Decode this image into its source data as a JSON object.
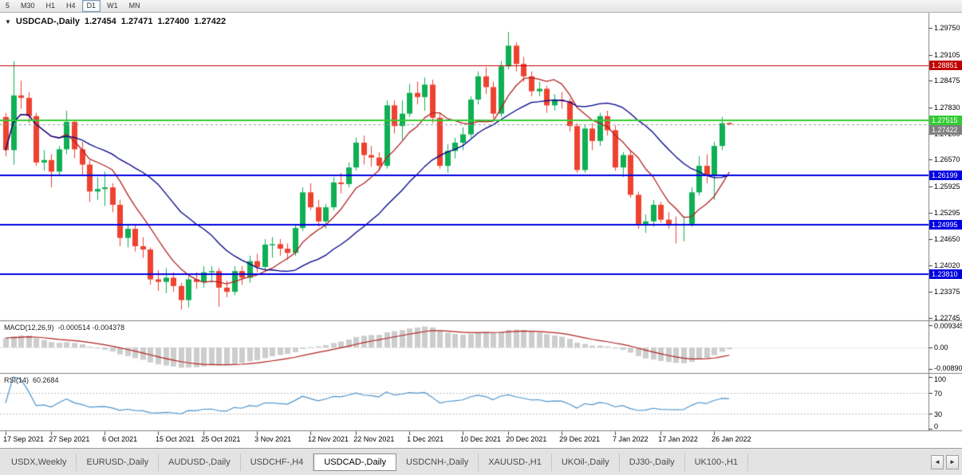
{
  "toolbar": {
    "timeframes": [
      "5",
      "M30",
      "H1",
      "H4",
      "D1",
      "W1",
      "MN"
    ],
    "active": "D1"
  },
  "icons": {
    "collapse": "▼",
    "tab_scroll_left": "◄",
    "tab_scroll_right": "►"
  },
  "chart": {
    "title": "USDCAD-,Daily",
    "open": "1.27454",
    "high": "1.27471",
    "low": "1.27400",
    "close": "1.27422"
  },
  "indicators": {
    "macd": {
      "label": "MACD(12,26,9)",
      "values": "-0.000514 -0.004378"
    },
    "rsi": {
      "label": "RSI(14)",
      "value": "60.2684"
    }
  },
  "tabs": {
    "items": [
      "USDX,Weekly",
      "EURUSD-,Daily",
      "AUDUSD-,Daily",
      "USDCHF-,H4",
      "USDCAD-,Daily",
      "USDCNH-,Daily",
      "XAUUSD-,H1",
      "UKOil-,Daily",
      "DJ30-,Daily",
      "UK100-,H1"
    ],
    "active_index": 4
  },
  "chart_data": {
    "type": "candlestick",
    "symbol": "USDCAD",
    "period": "Daily",
    "ylim": [
      1.2269,
      1.30115
    ],
    "candles": [
      [
        1.276,
        1.277,
        1.2665,
        1.268
      ],
      [
        1.268,
        1.2895,
        1.2645,
        1.2812
      ],
      [
        1.2812,
        1.2848,
        1.278,
        1.2806
      ],
      [
        1.2806,
        1.282,
        1.2745,
        1.2762
      ],
      [
        1.2762,
        1.277,
        1.2642,
        1.265
      ],
      [
        1.265,
        1.268,
        1.263,
        1.2656
      ],
      [
        1.2656,
        1.267,
        1.259,
        1.2628
      ],
      [
        1.2628,
        1.269,
        1.262,
        1.2682
      ],
      [
        1.2682,
        1.2775,
        1.267,
        1.2748
      ],
      [
        1.2748,
        1.2752,
        1.266,
        1.2682
      ],
      [
        1.2682,
        1.27,
        1.262,
        1.2645
      ],
      [
        1.2645,
        1.2655,
        1.2555,
        1.258
      ],
      [
        1.258,
        1.2615,
        1.256,
        1.2586
      ],
      [
        1.2586,
        1.2628,
        1.2545,
        1.259
      ],
      [
        1.259,
        1.26,
        1.253,
        1.2548
      ],
      [
        1.2548,
        1.256,
        1.2448,
        1.2468
      ],
      [
        1.2468,
        1.25,
        1.2445,
        1.249
      ],
      [
        1.249,
        1.2502,
        1.2435,
        1.2448
      ],
      [
        1.2448,
        1.247,
        1.242,
        1.244
      ],
      [
        1.244,
        1.2445,
        1.2355,
        1.2368
      ],
      [
        1.2368,
        1.239,
        1.234,
        1.2362
      ],
      [
        1.2362,
        1.2395,
        1.2335,
        1.2372
      ],
      [
        1.2372,
        1.2385,
        1.2338,
        1.2352
      ],
      [
        1.2352,
        1.236,
        1.2295,
        1.2318
      ],
      [
        1.2318,
        1.2375,
        1.23,
        1.2368
      ],
      [
        1.2368,
        1.2385,
        1.2345,
        1.2362
      ],
      [
        1.2362,
        1.24,
        1.2348,
        1.2385
      ],
      [
        1.2385,
        1.24,
        1.236,
        1.2388
      ],
      [
        1.2388,
        1.2395,
        1.2302,
        1.2348
      ],
      [
        1.2348,
        1.2365,
        1.2325,
        1.2338
      ],
      [
        1.2338,
        1.24,
        1.233,
        1.2388
      ],
      [
        1.2388,
        1.24,
        1.2355,
        1.2372
      ],
      [
        1.2372,
        1.2425,
        1.236,
        1.2412
      ],
      [
        1.2412,
        1.243,
        1.2385,
        1.2398
      ],
      [
        1.2398,
        1.2465,
        1.239,
        1.2452
      ],
      [
        1.2452,
        1.247,
        1.242,
        1.2453
      ],
      [
        1.2453,
        1.2465,
        1.2425,
        1.2442
      ],
      [
        1.2442,
        1.2455,
        1.2415,
        1.2432
      ],
      [
        1.2432,
        1.25,
        1.2425,
        1.2492
      ],
      [
        1.2492,
        1.259,
        1.2485,
        1.2578
      ],
      [
        1.2578,
        1.26,
        1.2535,
        1.2542
      ],
      [
        1.2542,
        1.256,
        1.2495,
        1.2508
      ],
      [
        1.2508,
        1.255,
        1.249,
        1.2542
      ],
      [
        1.2542,
        1.2615,
        1.2535,
        1.2602
      ],
      [
        1.2602,
        1.2625,
        1.2575,
        1.2598
      ],
      [
        1.2598,
        1.265,
        1.259,
        1.2638
      ],
      [
        1.2638,
        1.271,
        1.263,
        1.2698
      ],
      [
        1.2698,
        1.2715,
        1.2645,
        1.2668
      ],
      [
        1.2668,
        1.269,
        1.264,
        1.2662
      ],
      [
        1.2662,
        1.2675,
        1.263,
        1.2642
      ],
      [
        1.2642,
        1.28,
        1.2635,
        1.2788
      ],
      [
        1.2788,
        1.28,
        1.272,
        1.2738
      ],
      [
        1.2738,
        1.28,
        1.2705,
        1.2768
      ],
      [
        1.2768,
        1.284,
        1.276,
        1.2818
      ],
      [
        1.2818,
        1.2845,
        1.279,
        1.2808
      ],
      [
        1.2808,
        1.2855,
        1.2775,
        1.2838
      ],
      [
        1.2838,
        1.285,
        1.2745,
        1.2758
      ],
      [
        1.2758,
        1.277,
        1.2635,
        1.2642
      ],
      [
        1.2642,
        1.2695,
        1.2625,
        1.2678
      ],
      [
        1.2678,
        1.271,
        1.266,
        1.2698
      ],
      [
        1.2698,
        1.2735,
        1.268,
        1.2718
      ],
      [
        1.2718,
        1.281,
        1.271,
        1.2802
      ],
      [
        1.2802,
        1.287,
        1.279,
        1.2858
      ],
      [
        1.2858,
        1.288,
        1.2815,
        1.2832
      ],
      [
        1.2832,
        1.2845,
        1.2755,
        1.2768
      ],
      [
        1.2768,
        1.2895,
        1.276,
        1.2882
      ],
      [
        1.2882,
        1.2965,
        1.2875,
        1.2932
      ],
      [
        1.2932,
        1.294,
        1.287,
        1.2888
      ],
      [
        1.2888,
        1.2905,
        1.2845,
        1.2858
      ],
      [
        1.2858,
        1.287,
        1.281,
        1.2822
      ],
      [
        1.2822,
        1.2845,
        1.281,
        1.2828
      ],
      [
        1.2828,
        1.2835,
        1.277,
        1.2788
      ],
      [
        1.2788,
        1.2815,
        1.2775,
        1.2802
      ],
      [
        1.2802,
        1.282,
        1.278,
        1.2798
      ],
      [
        1.2798,
        1.2805,
        1.2725,
        1.2738
      ],
      [
        1.2738,
        1.2745,
        1.2625,
        1.2632
      ],
      [
        1.2632,
        1.2742,
        1.2625,
        1.2732
      ],
      [
        1.2732,
        1.2745,
        1.268,
        1.2702
      ],
      [
        1.2702,
        1.277,
        1.269,
        1.2762
      ],
      [
        1.2762,
        1.2775,
        1.2715,
        1.2728
      ],
      [
        1.2728,
        1.274,
        1.263,
        1.2638
      ],
      [
        1.2638,
        1.2675,
        1.2615,
        1.2668
      ],
      [
        1.2668,
        1.268,
        1.2565,
        1.2572
      ],
      [
        1.2572,
        1.258,
        1.249,
        1.2502
      ],
      [
        1.2502,
        1.2525,
        1.248,
        1.2508
      ],
      [
        1.2508,
        1.256,
        1.2495,
        1.2548
      ],
      [
        1.2548,
        1.2555,
        1.2505,
        1.2512
      ],
      [
        1.2512,
        1.253,
        1.249,
        1.2502
      ],
      [
        1.2502,
        1.252,
        1.2455,
        1.2498
      ],
      [
        1.2498,
        1.252,
        1.246,
        1.2502
      ],
      [
        1.2502,
        1.259,
        1.2495,
        1.2578
      ],
      [
        1.2578,
        1.2665,
        1.257,
        1.2642
      ],
      [
        1.2642,
        1.267,
        1.26,
        1.2618
      ],
      [
        1.2618,
        1.27,
        1.256,
        1.269
      ],
      [
        1.269,
        1.276,
        1.268,
        1.2745
      ],
      [
        1.27454,
        1.27471,
        1.274,
        1.27422
      ]
    ],
    "date_labels": [
      {
        "text": "17 Sep 2021",
        "index": 0
      },
      {
        "text": "27 Sep 2021",
        "index": 6
      },
      {
        "text": "6 Oct 2021",
        "index": 13
      },
      {
        "text": "15 Oct 2021",
        "index": 20
      },
      {
        "text": "25 Oct 2021",
        "index": 26
      },
      {
        "text": "3 Nov 2021",
        "index": 33
      },
      {
        "text": "12 Nov 2021",
        "index": 40
      },
      {
        "text": "22 Nov 2021",
        "index": 46
      },
      {
        "text": "1 Dec 2021",
        "index": 53
      },
      {
        "text": "10 Dec 2021",
        "index": 60
      },
      {
        "text": "20 Dec 2021",
        "index": 66
      },
      {
        "text": "29 Dec 2021",
        "index": 73
      },
      {
        "text": "7 Jan 2022",
        "index": 80
      },
      {
        "text": "17 Jan 2022",
        "index": 86
      },
      {
        "text": "26 Jan 2022",
        "index": 93
      }
    ],
    "price_ticks": [
      {
        "text": "1.29750",
        "value": 1.2975
      },
      {
        "text": "1.29105",
        "value": 1.29105
      },
      {
        "text": "1.28475",
        "value": 1.28475
      },
      {
        "text": "1.27830",
        "value": 1.2783
      },
      {
        "text": "1.27200",
        "value": 1.272
      },
      {
        "text": "1.26570",
        "value": 1.2657
      },
      {
        "text": "1.25925",
        "value": 1.25925
      },
      {
        "text": "1.25295",
        "value": 1.25295
      },
      {
        "text": "1.24650",
        "value": 1.2465
      },
      {
        "text": "1.24020",
        "value": 1.2402
      },
      {
        "text": "1.23375",
        "value": 1.23375
      },
      {
        "text": "1.22745",
        "value": 1.22745
      }
    ],
    "price_badges": [
      {
        "text": "1.28851",
        "value": 1.28851,
        "bg": "#C00000",
        "fg": "#FFFFFF"
      },
      {
        "text": "1.27515",
        "value": 1.27515,
        "bg": "#33CC33",
        "fg": "#FFFFFF"
      },
      {
        "text": "1.27422",
        "value": 1.27422,
        "bg": "#808080",
        "fg": "#FFFFFF"
      },
      {
        "text": "1.26199",
        "value": 1.26199,
        "bg": "#0000E0",
        "fg": "#FFFFFF"
      },
      {
        "text": "1.24995",
        "value": 1.24995,
        "bg": "#0000E0",
        "fg": "#FFFFFF"
      },
      {
        "text": "1.23810",
        "value": 1.2381,
        "bg": "#0000E0",
        "fg": "#FFFFFF"
      }
    ],
    "hlines": [
      {
        "value": 1.28851,
        "color": "#C00000",
        "width": 1,
        "dashed": false
      },
      {
        "value": 1.27515,
        "color": "#33CC33",
        "width": 2,
        "dashed": false
      },
      {
        "value": 1.27422,
        "color": "#9A9A9A",
        "width": 1,
        "dashed": true
      },
      {
        "value": 1.26199,
        "color": "#0000E0",
        "width": 2,
        "dashed": false
      },
      {
        "value": 1.24995,
        "color": "#0000E0",
        "width": 2,
        "dashed": false
      },
      {
        "value": 1.2381,
        "color": "#0000E0",
        "width": 2,
        "dashed": false
      }
    ],
    "moving_averages": [
      {
        "period": 8,
        "color": "#B22222"
      },
      {
        "period": 20,
        "color": "#00008B"
      }
    ],
    "macd": {
      "fast": 12,
      "slow": 26,
      "signal": 9,
      "axis": [
        {
          "text": "0.009345",
          "value": 0.009345
        },
        {
          "text": "0.00",
          "value": 0
        },
        {
          "text": "-0.00890",
          "value": -0.0089
        }
      ],
      "hist_color": "#CDCDCD",
      "signal_color": "#B22222"
    },
    "rsi": {
      "period": 14,
      "levels": [
        70,
        30
      ],
      "axis": [
        {
          "text": "100",
          "value": 100
        },
        {
          "text": "70",
          "value": 70
        },
        {
          "text": "30",
          "value": 30
        },
        {
          "text": "0",
          "value": 0
        }
      ],
      "line_color": "#4F95CD"
    },
    "colors": {
      "up": "#0FAF54",
      "down": "#EE4230",
      "background": "#FFFFFF",
      "separator": "#808080"
    }
  }
}
